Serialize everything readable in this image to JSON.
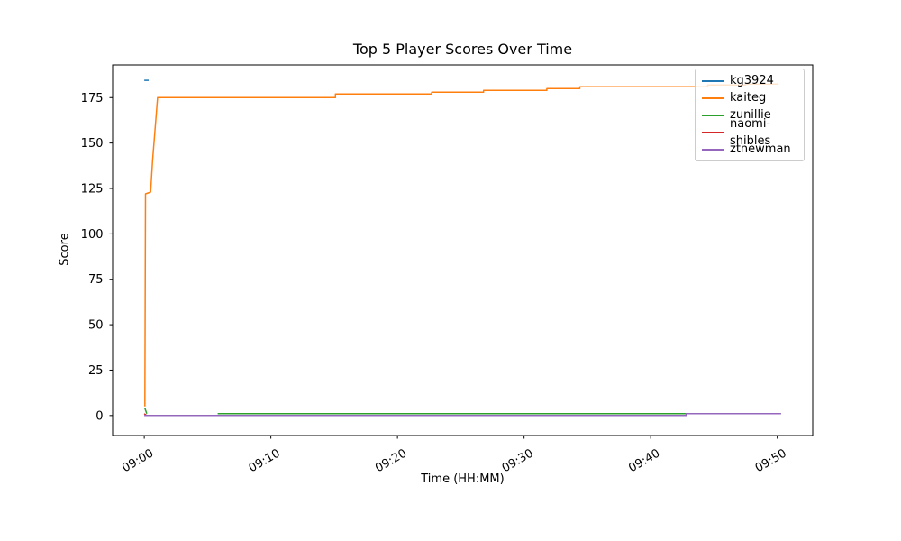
{
  "figure": {
    "title": "Top 5 Player Scores Over Time",
    "xlabel": "Time (HH:MM)",
    "ylabel": "Score"
  },
  "chart_data": {
    "type": "line",
    "title": "Top 5 Player Scores Over Time",
    "xlabel": "Time (HH:MM)",
    "ylabel": "Score",
    "grid": false,
    "legend_position": "upper right",
    "x_unit": "minutes after 09:00",
    "xlim": [
      -2.5,
      52.8
    ],
    "ylim": [
      -11,
      193
    ],
    "x_ticks": [
      {
        "minutes": 0,
        "label": "09:00"
      },
      {
        "minutes": 10,
        "label": "09:10"
      },
      {
        "minutes": 20,
        "label": "09:20"
      },
      {
        "minutes": 30,
        "label": "09:30"
      },
      {
        "minutes": 40,
        "label": "09:40"
      },
      {
        "minutes": 50,
        "label": "09:50"
      }
    ],
    "x_tick_rotation_deg": 30,
    "y_ticks": [
      0,
      25,
      50,
      75,
      100,
      125,
      150,
      175
    ],
    "series": [
      {
        "name": "kg3924",
        "color": "#1f77b4",
        "segments": [
          [
            [
              0.0,
              184.5
            ],
            [
              0.35,
              184.5
            ]
          ]
        ]
      },
      {
        "name": "kaiteg",
        "color": "#ff7f0e",
        "segments": [
          [
            [
              0.05,
              5
            ],
            [
              0.1,
              122
            ],
            [
              0.5,
              123
            ],
            [
              0.65,
              140
            ],
            [
              1.05,
              175
            ],
            [
              15.1,
              175
            ],
            [
              15.1,
              177
            ],
            [
              22.7,
              177
            ],
            [
              22.7,
              178
            ],
            [
              26.8,
              178
            ],
            [
              26.8,
              179
            ],
            [
              31.8,
              179
            ],
            [
              31.8,
              180
            ],
            [
              34.4,
              180
            ],
            [
              34.4,
              181
            ],
            [
              44.5,
              181
            ],
            [
              44.5,
              182
            ],
            [
              47.5,
              182
            ],
            [
              47.5,
              182.5
            ],
            [
              50.1,
              182.5
            ]
          ]
        ]
      },
      {
        "name": "zunillie",
        "color": "#2ca02c",
        "segments": [
          [
            [
              0.05,
              4
            ],
            [
              0.2,
              1
            ]
          ],
          [
            [
              5.8,
              1
            ],
            [
              42.8,
              1
            ]
          ]
        ]
      },
      {
        "name": "naomi-shibles",
        "color": "#d62728",
        "segments": [
          [
            [
              0.0,
              1
            ],
            [
              0.2,
              0
            ]
          ]
        ]
      },
      {
        "name": "ztnewman",
        "color": "#9467bd",
        "segments": [
          [
            [
              0.0,
              0
            ],
            [
              42.8,
              0
            ],
            [
              42.8,
              1
            ],
            [
              50.3,
              1
            ]
          ]
        ]
      }
    ]
  }
}
